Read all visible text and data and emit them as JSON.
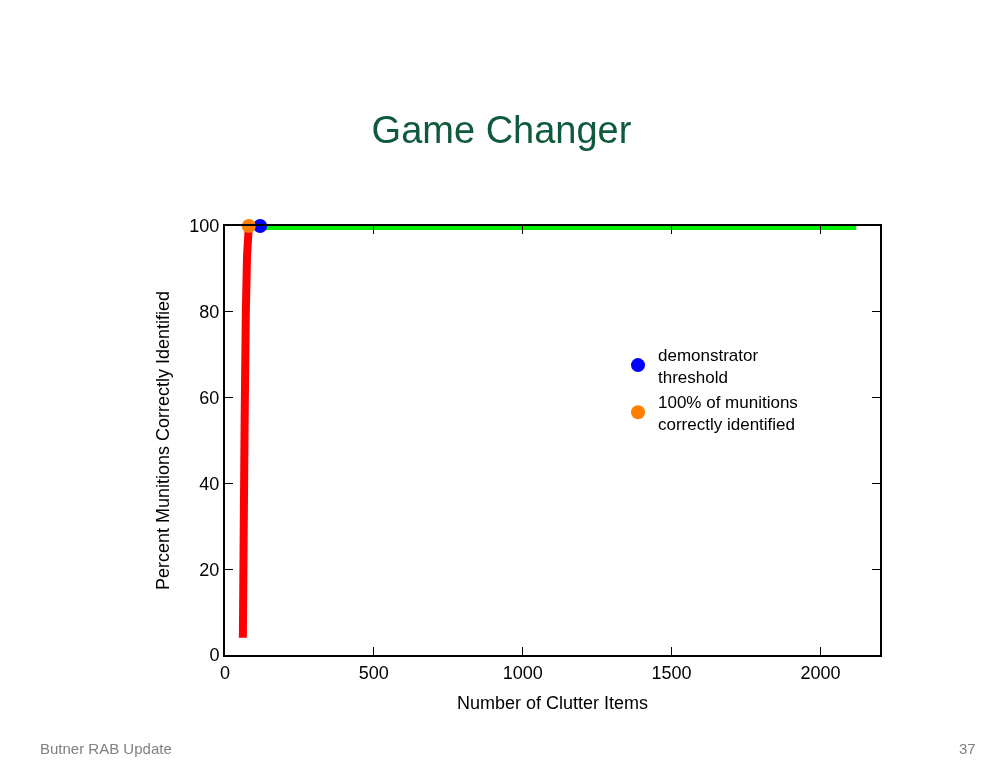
{
  "chart_data": {
    "type": "line",
    "title": "Game Changer",
    "xlabel": "Number of Clutter Items",
    "ylabel": "Percent Munitions Correctly Identified",
    "series": [
      {
        "color": "#ff0000",
        "marker": "none",
        "x": [
          60,
          63,
          66,
          70,
          74,
          80
        ],
        "values": [
          4,
          30,
          55,
          80,
          93,
          100
        ]
      },
      {
        "color": "#00ee00",
        "marker": "none",
        "x": [
          80,
          2120
        ],
        "values": [
          100,
          100
        ]
      },
      {
        "type": "scatter",
        "marker": "circle",
        "name": "demonstrator\nthreshold",
        "color": "#0000ff",
        "x": [
          118
        ],
        "values": [
          100
        ]
      },
      {
        "type": "scatter",
        "marker": "circle",
        "name": "100% of munitions\ncorrectly identified",
        "color": "#ff8000",
        "x": [
          80
        ],
        "values": [
          100
        ]
      }
    ],
    "xlim": [
      0,
      2200
    ],
    "xticks": [
      0,
      500,
      1000,
      1500,
      2000
    ],
    "ylim": [
      0,
      100
    ],
    "yticks": [
      0,
      20,
      40,
      60,
      80,
      100
    ],
    "legend": "right",
    "annotations": [
      "Butner RAB Update",
      "37"
    ]
  }
}
